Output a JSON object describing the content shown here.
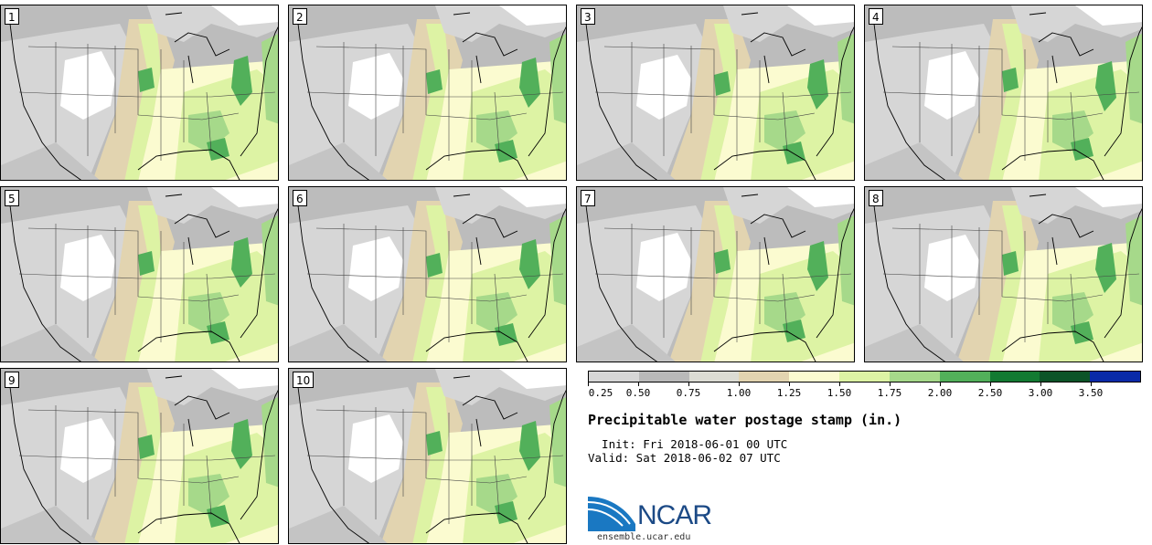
{
  "stamps": [
    {
      "label": "1"
    },
    {
      "label": "2"
    },
    {
      "label": "3"
    },
    {
      "label": "4"
    },
    {
      "label": "5"
    },
    {
      "label": "6"
    },
    {
      "label": "7"
    },
    {
      "label": "8"
    },
    {
      "label": "9"
    },
    {
      "label": "10"
    }
  ],
  "colorbar": {
    "colors": [
      "#d6d6d6",
      "#b9b9b9",
      "#dcdcd4",
      "#e2d4b0",
      "#fbfbd0",
      "#ddf3a4",
      "#a6d98a",
      "#52b05a",
      "#127a32",
      "#0b5428",
      "#0a2aa8"
    ],
    "tick_labels": [
      "0.25",
      "0.50",
      "0.75",
      "1.00",
      "1.25",
      "1.50",
      "1.75",
      "2.00",
      "2.50",
      "3.00",
      "3.50"
    ]
  },
  "title": "Precipitable water postage stamp (in.)",
  "init": "  Init: Fri 2018-06-01 00 UTC",
  "valid": "Valid: Sat 2018-06-02 07 UTC",
  "logo": {
    "name": "NCAR",
    "url": "ensemble.ucar.edu"
  },
  "map_colors": {
    "dry_gray": "#bcbcbc",
    "light_gray": "#d6d6d6",
    "white": "#ffffff",
    "tan": "#e2d4b0",
    "pale_yellow": "#fbfbd0",
    "light_green": "#ddf3a4",
    "green": "#a6d98a",
    "dark_green": "#52b05a",
    "border": "#444444"
  }
}
